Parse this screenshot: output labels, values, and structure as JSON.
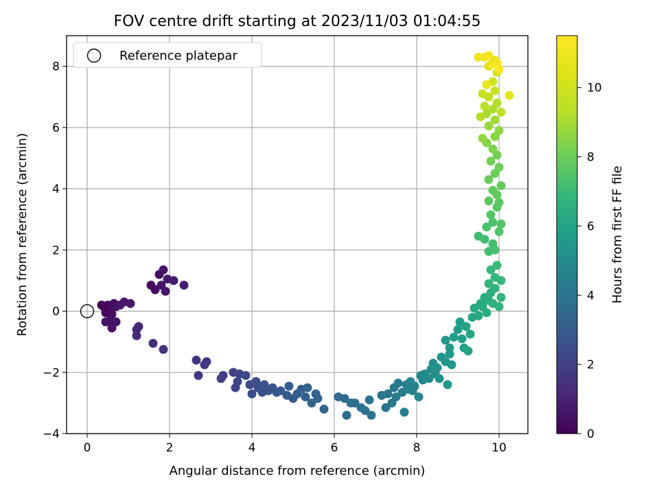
{
  "chart_data": {
    "type": "scatter",
    "title": "FOV centre drift starting at 2023/11/03 01:04:55",
    "xlabel": "Angular distance from reference (arcmin)",
    "ylabel": "Rotation from reference (arcmin)",
    "xlim": [
      -0.5,
      10.7
    ],
    "ylim": [
      -4.0,
      9.0
    ],
    "xticks": [
      0,
      2,
      4,
      6,
      8,
      10
    ],
    "yticks": [
      -4,
      -2,
      0,
      2,
      4,
      6,
      8
    ],
    "grid": true,
    "legend": {
      "position": "top-left",
      "entries": [
        "Reference platepar"
      ]
    },
    "reference_point": {
      "x": 0,
      "y": 0
    },
    "colorbar": {
      "label": "Hours from first FF file",
      "range": [
        0,
        11.5
      ],
      "ticks": [
        0,
        2,
        4,
        6,
        8,
        10
      ],
      "colormap": "viridis"
    },
    "points": [
      [
        0.35,
        0.2,
        0.05
      ],
      [
        0.4,
        0.15,
        0.1
      ],
      [
        0.45,
        -0.05,
        0.15
      ],
      [
        0.5,
        0.2,
        0.2
      ],
      [
        0.55,
        0.1,
        0.25
      ],
      [
        0.6,
        -0.1,
        0.3
      ],
      [
        0.65,
        0.25,
        0.35
      ],
      [
        0.7,
        0.15,
        0.4
      ],
      [
        0.55,
        -0.3,
        0.45
      ],
      [
        0.45,
        -0.35,
        0.5
      ],
      [
        0.6,
        -0.55,
        0.55
      ],
      [
        0.7,
        -0.35,
        0.6
      ],
      [
        0.8,
        0.2,
        0.65
      ],
      [
        0.9,
        0.3,
        0.7
      ],
      [
        1.05,
        0.25,
        0.75
      ],
      [
        1.55,
        0.85,
        0.2
      ],
      [
        1.65,
        0.7,
        0.3
      ],
      [
        1.75,
        1.2,
        0.4
      ],
      [
        1.85,
        1.35,
        0.5
      ],
      [
        1.8,
        0.85,
        0.6
      ],
      [
        1.9,
        0.65,
        0.65
      ],
      [
        1.95,
        1.05,
        0.7
      ],
      [
        2.1,
        1.0,
        0.8
      ],
      [
        2.35,
        0.85,
        0.85
      ],
      [
        1.2,
        -0.6,
        1.1
      ],
      [
        1.25,
        -0.5,
        1.15
      ],
      [
        1.2,
        -0.8,
        1.25
      ],
      [
        1.6,
        -1.05,
        1.35
      ],
      [
        1.85,
        -1.25,
        1.45
      ],
      [
        2.65,
        -1.6,
        1.6
      ],
      [
        2.7,
        -2.1,
        1.65
      ],
      [
        2.85,
        -1.75,
        1.7
      ],
      [
        2.9,
        -1.65,
        1.75
      ],
      [
        3.25,
        -2.2,
        1.9
      ],
      [
        3.3,
        -2.1,
        1.95
      ],
      [
        3.55,
        -2.0,
        2.05
      ],
      [
        3.6,
        -2.5,
        2.1
      ],
      [
        3.7,
        -2.05,
        2.15
      ],
      [
        3.65,
        -2.3,
        2.2
      ],
      [
        3.85,
        -2.1,
        2.3
      ],
      [
        3.95,
        -2.4,
        2.35
      ],
      [
        4.0,
        -2.7,
        2.4
      ],
      [
        4.1,
        -2.3,
        2.45
      ],
      [
        4.15,
        -2.5,
        2.5
      ],
      [
        4.25,
        -2.65,
        2.55
      ],
      [
        4.3,
        -2.4,
        2.6
      ],
      [
        4.4,
        -2.6,
        2.7
      ],
      [
        4.5,
        -2.5,
        2.75
      ],
      [
        4.6,
        -2.65,
        2.8
      ],
      [
        4.7,
        -2.6,
        2.85
      ],
      [
        4.85,
        -2.75,
        2.9
      ],
      [
        4.9,
        -2.45,
        2.95
      ],
      [
        5.0,
        -2.85,
        3.0
      ],
      [
        5.1,
        -2.7,
        3.05
      ],
      [
        5.2,
        -2.55,
        3.1
      ],
      [
        5.3,
        -2.8,
        3.15
      ],
      [
        5.35,
        -2.5,
        3.2
      ],
      [
        5.45,
        -3.0,
        3.25
      ],
      [
        5.55,
        -2.7,
        3.3
      ],
      [
        5.6,
        -2.85,
        3.35
      ],
      [
        5.75,
        -3.2,
        3.4
      ],
      [
        6.1,
        -2.8,
        3.55
      ],
      [
        6.25,
        -2.85,
        3.6
      ],
      [
        6.3,
        -3.4,
        3.65
      ],
      [
        6.4,
        -3.0,
        3.7
      ],
      [
        6.5,
        -3.0,
        3.75
      ],
      [
        6.65,
        -3.15,
        3.8
      ],
      [
        6.75,
        -3.25,
        3.85
      ],
      [
        6.85,
        -2.9,
        3.9
      ],
      [
        6.9,
        -3.4,
        3.95
      ],
      [
        7.15,
        -2.75,
        4.0
      ],
      [
        7.25,
        -3.15,
        4.05
      ],
      [
        7.3,
        -2.7,
        4.1
      ],
      [
        7.4,
        -3.0,
        4.15
      ],
      [
        7.45,
        -2.5,
        4.2
      ],
      [
        7.5,
        -2.8,
        4.25
      ],
      [
        7.55,
        -2.35,
        4.3
      ],
      [
        7.65,
        -2.65,
        4.35
      ],
      [
        7.7,
        -3.3,
        4.4
      ],
      [
        7.75,
        -2.4,
        4.45
      ],
      [
        7.8,
        -2.55,
        4.5
      ],
      [
        7.85,
        -2.3,
        4.6
      ],
      [
        7.9,
        -2.6,
        4.65
      ],
      [
        7.95,
        -2.45,
        4.7
      ],
      [
        8.05,
        -2.8,
        4.75
      ],
      [
        8.1,
        -2.1,
        4.85
      ],
      [
        8.15,
        -2.25,
        4.9
      ],
      [
        8.2,
        -2.05,
        4.95
      ],
      [
        8.3,
        -2.2,
        5.0
      ],
      [
        8.35,
        -1.9,
        5.05
      ],
      [
        8.4,
        -1.7,
        5.1
      ],
      [
        8.45,
        -2.05,
        5.15
      ],
      [
        8.5,
        -1.85,
        5.2
      ],
      [
        8.55,
        -2.2,
        5.25
      ],
      [
        8.6,
        -1.5,
        5.35
      ],
      [
        8.7,
        -1.65,
        5.4
      ],
      [
        8.75,
        -2.4,
        5.45
      ],
      [
        8.8,
        -1.4,
        5.5
      ],
      [
        8.85,
        -1.75,
        5.55
      ],
      [
        8.7,
        -0.95,
        5.6
      ],
      [
        8.8,
        -1.2,
        5.65
      ],
      [
        8.9,
        -0.85,
        5.7
      ],
      [
        9.0,
        -0.6,
        5.75
      ],
      [
        9.05,
        -0.35,
        5.8
      ],
      [
        9.1,
        -0.9,
        5.85
      ],
      [
        9.15,
        -1.2,
        5.9
      ],
      [
        9.2,
        -0.5,
        5.95
      ],
      [
        9.25,
        -1.3,
        6.0
      ],
      [
        9.3,
        -0.75,
        6.05
      ],
      [
        9.35,
        -0.2,
        6.1
      ],
      [
        9.4,
        0.1,
        6.2
      ],
      [
        9.5,
        -0.15,
        6.25
      ],
      [
        9.55,
        0.25,
        6.3
      ],
      [
        9.6,
        0.15,
        6.35
      ],
      [
        9.65,
        0.45,
        6.4
      ],
      [
        9.7,
        -0.05,
        6.45
      ],
      [
        9.75,
        0.35,
        6.5
      ],
      [
        9.8,
        0.6,
        6.55
      ],
      [
        9.85,
        0.25,
        6.6
      ],
      [
        9.9,
        0.75,
        6.65
      ],
      [
        10.0,
        0.15,
        6.7
      ],
      [
        10.05,
        0.45,
        6.75
      ],
      [
        9.75,
        0.9,
        6.8
      ],
      [
        9.9,
        1.1,
        6.85
      ],
      [
        10.05,
        1.0,
        6.9
      ],
      [
        9.8,
        1.35,
        6.95
      ],
      [
        9.95,
        1.5,
        7.0
      ],
      [
        9.5,
        2.45,
        7.1
      ],
      [
        9.65,
        2.35,
        7.15
      ],
      [
        9.75,
        1.95,
        7.2
      ],
      [
        9.85,
        2.2,
        7.25
      ],
      [
        9.9,
        2.0,
        7.3
      ],
      [
        9.7,
        2.75,
        7.35
      ],
      [
        9.85,
        2.9,
        7.4
      ],
      [
        10.0,
        2.6,
        7.45
      ],
      [
        10.05,
        2.85,
        7.5
      ],
      [
        9.8,
        3.15,
        7.55
      ],
      [
        9.95,
        3.4,
        7.6
      ],
      [
        10.0,
        3.55,
        7.65
      ],
      [
        9.75,
        3.6,
        7.7
      ],
      [
        9.85,
        3.95,
        7.8
      ],
      [
        9.95,
        3.8,
        7.85
      ],
      [
        10.05,
        4.1,
        7.9
      ],
      [
        9.75,
        4.3,
        7.95
      ],
      [
        9.9,
        4.5,
        8.0
      ],
      [
        10.0,
        4.7,
        8.05
      ],
      [
        9.8,
        4.9,
        8.15
      ],
      [
        9.95,
        5.1,
        8.2
      ],
      [
        9.85,
        5.3,
        8.3
      ],
      [
        9.7,
        5.5,
        8.4
      ],
      [
        9.9,
        5.7,
        8.5
      ],
      [
        10.0,
        5.9,
        8.6
      ],
      [
        9.6,
        5.65,
        8.7
      ],
      [
        9.75,
        6.05,
        8.8
      ],
      [
        9.9,
        6.25,
        8.9
      ],
      [
        9.7,
        6.45,
        9.0
      ],
      [
        9.85,
        6.6,
        9.1
      ],
      [
        9.95,
        6.8,
        9.2
      ],
      [
        9.55,
        6.35,
        9.3
      ],
      [
        9.65,
        6.7,
        9.4
      ],
      [
        10.05,
        6.5,
        9.5
      ],
      [
        9.75,
        7.0,
        9.6
      ],
      [
        9.9,
        7.2,
        9.7
      ],
      [
        9.6,
        7.1,
        9.8
      ],
      [
        9.85,
        7.5,
        10.0
      ],
      [
        9.95,
        7.8,
        10.2
      ],
      [
        9.75,
        8.0,
        10.4
      ],
      [
        9.9,
        8.2,
        10.6
      ],
      [
        10.25,
        7.05,
        10.7
      ],
      [
        9.7,
        7.4,
        10.8
      ],
      [
        9.8,
        8.05,
        10.9
      ],
      [
        9.65,
        8.3,
        11.0
      ],
      [
        9.95,
        8.1,
        11.1
      ],
      [
        9.5,
        8.3,
        11.2
      ],
      [
        9.75,
        8.35,
        11.3
      ],
      [
        10.0,
        7.9,
        11.4
      ]
    ]
  }
}
